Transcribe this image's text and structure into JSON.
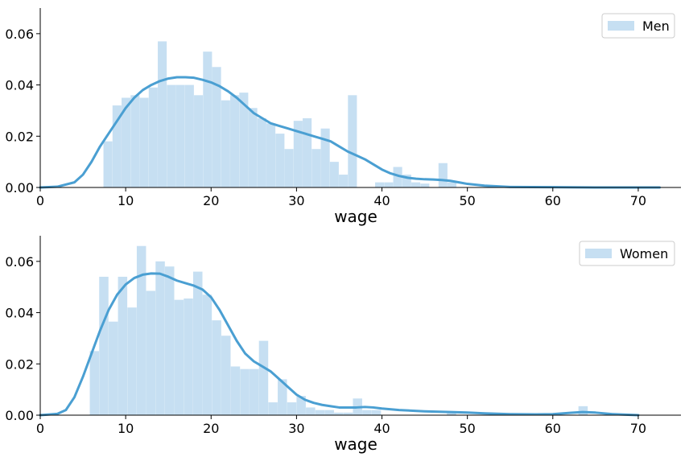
{
  "chart_data": [
    {
      "type": "bar",
      "title": "",
      "xlabel": "wage",
      "ylabel": "",
      "xlim": [
        0,
        75
      ],
      "ylim": [
        0,
        0.07
      ],
      "xticks": [
        0,
        10,
        20,
        30,
        40,
        50,
        60,
        70
      ],
      "yticks": [
        0.0,
        0.02,
        0.04,
        0.06
      ],
      "grid": false,
      "legend": "top-right",
      "bar_color": "#c6dff2",
      "line_color": "#4a9fd2",
      "series": [
        {
          "name": "Men",
          "bin_width": 1.06,
          "bins": [
            {
              "x": 7.4,
              "y": 0.018
            },
            {
              "x": 8.46,
              "y": 0.032
            },
            {
              "x": 9.52,
              "y": 0.035
            },
            {
              "x": 10.58,
              "y": 0.036
            },
            {
              "x": 11.64,
              "y": 0.035
            },
            {
              "x": 12.7,
              "y": 0.039
            },
            {
              "x": 13.76,
              "y": 0.057
            },
            {
              "x": 14.82,
              "y": 0.04
            },
            {
              "x": 15.88,
              "y": 0.04
            },
            {
              "x": 16.94,
              "y": 0.04
            },
            {
              "x": 18.0,
              "y": 0.036
            },
            {
              "x": 19.06,
              "y": 0.053
            },
            {
              "x": 20.12,
              "y": 0.047
            },
            {
              "x": 21.18,
              "y": 0.034
            },
            {
              "x": 22.24,
              "y": 0.036
            },
            {
              "x": 23.3,
              "y": 0.037
            },
            {
              "x": 24.36,
              "y": 0.031
            },
            {
              "x": 25.42,
              "y": 0.027
            },
            {
              "x": 26.48,
              "y": 0.025
            },
            {
              "x": 27.54,
              "y": 0.021
            },
            {
              "x": 28.6,
              "y": 0.015
            },
            {
              "x": 29.66,
              "y": 0.026
            },
            {
              "x": 30.72,
              "y": 0.027
            },
            {
              "x": 31.78,
              "y": 0.015
            },
            {
              "x": 32.84,
              "y": 0.023
            },
            {
              "x": 33.9,
              "y": 0.01
            },
            {
              "x": 34.96,
              "y": 0.005
            },
            {
              "x": 36.02,
              "y": 0.036
            },
            {
              "x": 37.08,
              "y": 0.0
            },
            {
              "x": 38.14,
              "y": 0.0
            },
            {
              "x": 39.2,
              "y": 0.002
            },
            {
              "x": 40.26,
              "y": 0.002
            },
            {
              "x": 41.32,
              "y": 0.008
            },
            {
              "x": 42.38,
              "y": 0.005
            },
            {
              "x": 43.44,
              "y": 0.002
            },
            {
              "x": 44.5,
              "y": 0.0015
            },
            {
              "x": 45.56,
              "y": 0.0
            },
            {
              "x": 46.62,
              "y": 0.0095
            },
            {
              "x": 47.68,
              "y": 0.002
            }
          ],
          "kde": [
            [
              0,
              0.0
            ],
            [
              2,
              0.0003
            ],
            [
              4,
              0.002
            ],
            [
              5,
              0.005
            ],
            [
              6,
              0.01
            ],
            [
              7,
              0.016
            ],
            [
              8,
              0.021
            ],
            [
              9,
              0.026
            ],
            [
              10,
              0.031
            ],
            [
              11,
              0.035
            ],
            [
              12,
              0.038
            ],
            [
              13,
              0.04
            ],
            [
              14,
              0.0415
            ],
            [
              15,
              0.0425
            ],
            [
              16,
              0.043
            ],
            [
              17,
              0.043
            ],
            [
              18,
              0.0428
            ],
            [
              19,
              0.042
            ],
            [
              20,
              0.041
            ],
            [
              21,
              0.0395
            ],
            [
              22,
              0.0375
            ],
            [
              23,
              0.035
            ],
            [
              24,
              0.032
            ],
            [
              25,
              0.029
            ],
            [
              26,
              0.027
            ],
            [
              27,
              0.025
            ],
            [
              28,
              0.024
            ],
            [
              29,
              0.023
            ],
            [
              30,
              0.022
            ],
            [
              31,
              0.021
            ],
            [
              32,
              0.02
            ],
            [
              33,
              0.019
            ],
            [
              34,
              0.018
            ],
            [
              35,
              0.016
            ],
            [
              36,
              0.014
            ],
            [
              37,
              0.0125
            ],
            [
              38,
              0.011
            ],
            [
              39,
              0.009
            ],
            [
              40,
              0.007
            ],
            [
              41,
              0.0055
            ],
            [
              42,
              0.0045
            ],
            [
              43,
              0.0038
            ],
            [
              44,
              0.0034
            ],
            [
              45,
              0.0032
            ],
            [
              46,
              0.0031
            ],
            [
              47,
              0.0029
            ],
            [
              48,
              0.0026
            ],
            [
              49,
              0.002
            ],
            [
              50,
              0.0014
            ],
            [
              52,
              0.0007
            ],
            [
              55,
              0.0002
            ],
            [
              60,
              0.0001
            ],
            [
              65,
              0.0
            ],
            [
              72.5,
              0.0
            ]
          ]
        }
      ]
    },
    {
      "type": "bar",
      "title": "",
      "xlabel": "wage",
      "ylabel": "",
      "xlim": [
        0,
        75
      ],
      "ylim": [
        0,
        0.07
      ],
      "xticks": [
        0,
        10,
        20,
        30,
        40,
        50,
        60,
        70
      ],
      "yticks": [
        0.0,
        0.02,
        0.04,
        0.06
      ],
      "grid": false,
      "legend": "top-right",
      "bar_color": "#c6dff2",
      "line_color": "#4a9fd2",
      "series": [
        {
          "name": "Women",
          "bin_width": 1.1,
          "bins": [
            {
              "x": 5.8,
              "y": 0.025
            },
            {
              "x": 6.9,
              "y": 0.054
            },
            {
              "x": 8.0,
              "y": 0.0365
            },
            {
              "x": 9.1,
              "y": 0.054
            },
            {
              "x": 10.2,
              "y": 0.042
            },
            {
              "x": 11.3,
              "y": 0.066
            },
            {
              "x": 12.4,
              "y": 0.0485
            },
            {
              "x": 13.5,
              "y": 0.06
            },
            {
              "x": 14.6,
              "y": 0.058
            },
            {
              "x": 15.7,
              "y": 0.045
            },
            {
              "x": 16.8,
              "y": 0.0455
            },
            {
              "x": 17.9,
              "y": 0.056
            },
            {
              "x": 19.0,
              "y": 0.047
            },
            {
              "x": 20.1,
              "y": 0.037
            },
            {
              "x": 21.2,
              "y": 0.031
            },
            {
              "x": 22.3,
              "y": 0.019
            },
            {
              "x": 23.4,
              "y": 0.018
            },
            {
              "x": 24.5,
              "y": 0.018
            },
            {
              "x": 25.6,
              "y": 0.029
            },
            {
              "x": 26.7,
              "y": 0.005
            },
            {
              "x": 27.8,
              "y": 0.014
            },
            {
              "x": 28.9,
              "y": 0.005
            },
            {
              "x": 30.0,
              "y": 0.0075
            },
            {
              "x": 31.1,
              "y": 0.003
            },
            {
              "x": 32.2,
              "y": 0.002
            },
            {
              "x": 33.3,
              "y": 0.002
            },
            {
              "x": 34.4,
              "y": 0.001
            },
            {
              "x": 35.5,
              "y": 0.001
            },
            {
              "x": 36.6,
              "y": 0.0065
            },
            {
              "x": 37.7,
              "y": 0.002
            },
            {
              "x": 38.8,
              "y": 0.002
            },
            {
              "x": 47.6,
              "y": 0.001
            },
            {
              "x": 63.0,
              "y": 0.0035
            }
          ],
          "kde": [
            [
              0,
              0.0
            ],
            [
              2,
              0.0005
            ],
            [
              3,
              0.002
            ],
            [
              4,
              0.007
            ],
            [
              5,
              0.015
            ],
            [
              6,
              0.024
            ],
            [
              7,
              0.033
            ],
            [
              8,
              0.041
            ],
            [
              9,
              0.047
            ],
            [
              10,
              0.051
            ],
            [
              11,
              0.0535
            ],
            [
              12,
              0.0548
            ],
            [
              13,
              0.0553
            ],
            [
              14,
              0.0552
            ],
            [
              15,
              0.054
            ],
            [
              16,
              0.0525
            ],
            [
              17,
              0.0515
            ],
            [
              18,
              0.0505
            ],
            [
              19,
              0.049
            ],
            [
              20,
              0.046
            ],
            [
              21,
              0.041
            ],
            [
              22,
              0.035
            ],
            [
              23,
              0.029
            ],
            [
              24,
              0.024
            ],
            [
              25,
              0.021
            ],
            [
              26,
              0.019
            ],
            [
              27,
              0.017
            ],
            [
              28,
              0.014
            ],
            [
              29,
              0.011
            ],
            [
              30,
              0.008
            ],
            [
              31,
              0.006
            ],
            [
              32,
              0.0048
            ],
            [
              33,
              0.004
            ],
            [
              34,
              0.0035
            ],
            [
              35,
              0.003
            ],
            [
              36,
              0.003
            ],
            [
              37,
              0.003
            ],
            [
              38,
              0.0032
            ],
            [
              39,
              0.003
            ],
            [
              40,
              0.0026
            ],
            [
              42,
              0.002
            ],
            [
              45,
              0.0015
            ],
            [
              48,
              0.0012
            ],
            [
              50,
              0.001
            ],
            [
              52,
              0.0007
            ],
            [
              55,
              0.0004
            ],
            [
              58,
              0.0003
            ],
            [
              60,
              0.0004
            ],
            [
              62,
              0.0009
            ],
            [
              63.5,
              0.0012
            ],
            [
              65,
              0.001
            ],
            [
              67,
              0.0004
            ],
            [
              70,
              0.0
            ]
          ]
        }
      ]
    }
  ]
}
